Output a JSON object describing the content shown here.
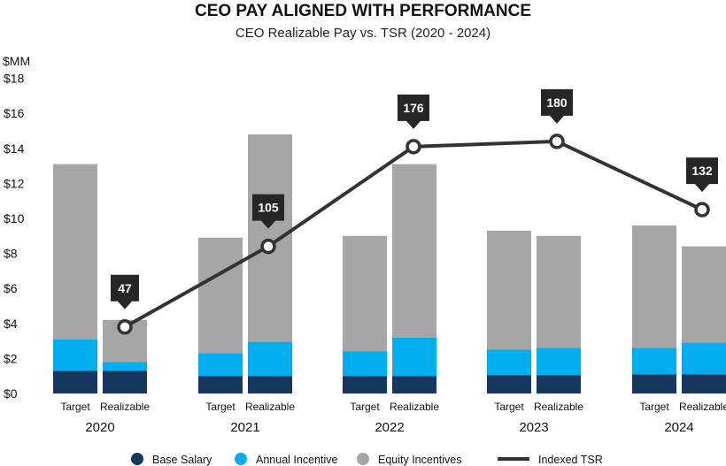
{
  "chart_data": {
    "type": "bar",
    "title": "CEO PAY ALIGNED WITH PERFORMANCE",
    "subtitle": "CEO Realizable Pay vs. TSR (2020 - 2024)",
    "ylabel": "$MM",
    "ylim": [
      0,
      18
    ],
    "yticks": [
      0,
      2,
      4,
      6,
      8,
      10,
      12,
      14,
      16,
      18
    ],
    "ytick_labels": [
      "$0",
      "$2",
      "$4",
      "$6",
      "$8",
      "$10",
      "$12",
      "$14",
      "$16",
      "$18"
    ],
    "years": [
      "2020",
      "2021",
      "2022",
      "2023",
      "2024"
    ],
    "bar_types": [
      "Target",
      "Realizable"
    ],
    "stacked": true,
    "series": [
      {
        "name": "Base Salary",
        "color": "#17375e",
        "values": [
          [
            1.3,
            1.3
          ],
          [
            1.0,
            1.0
          ],
          [
            1.0,
            1.0
          ],
          [
            1.05,
            1.05
          ],
          [
            1.1,
            1.1
          ]
        ]
      },
      {
        "name": "Annual Incentive",
        "color": "#00aeef",
        "values": [
          [
            1.8,
            0.5
          ],
          [
            1.3,
            1.95
          ],
          [
            1.4,
            2.2
          ],
          [
            1.45,
            1.55
          ],
          [
            1.5,
            1.8
          ]
        ]
      },
      {
        "name": "Equity Incentives",
        "color": "#a6a6a6",
        "values": [
          [
            10.0,
            2.4
          ],
          [
            6.6,
            11.85
          ],
          [
            6.6,
            9.9
          ],
          [
            6.8,
            6.4
          ],
          [
            7.0,
            5.5
          ]
        ]
      }
    ],
    "line": {
      "name": "Indexed TSR",
      "color": "#333333",
      "values": [
        47,
        105,
        176,
        180,
        132
      ],
      "labels": [
        "47",
        "105",
        "176",
        "180",
        "132"
      ],
      "plot_y": [
        3.8,
        8.4,
        14.1,
        14.4,
        10.5
      ]
    },
    "legend": [
      "Base Salary",
      "Annual Incentive",
      "Equity Incentives",
      "Indexed TSR"
    ],
    "legend_position": "bottom"
  }
}
